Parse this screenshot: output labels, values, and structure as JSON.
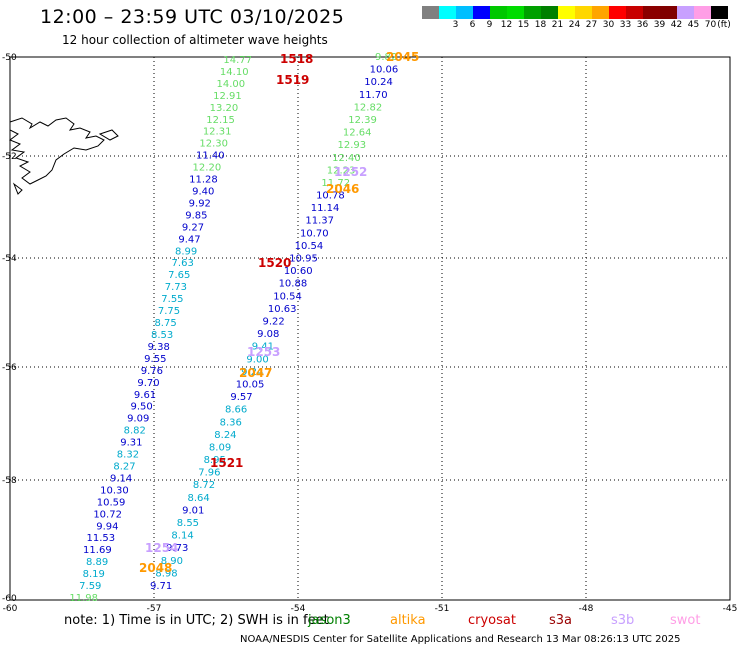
{
  "header": {
    "title": "12:00 – 23:59 UTC 03/10/2025",
    "subtitle": "12 hour collection of altimeter wave heights"
  },
  "color_scale": {
    "unit": "(ft)",
    "bins": [
      {
        "label": "",
        "color": "#808080"
      },
      {
        "label": "3",
        "color": "#00ffff"
      },
      {
        "label": "6",
        "color": "#00bfff"
      },
      {
        "label": "9",
        "color": "#0000ff"
      },
      {
        "label": "12",
        "color": "#00c800"
      },
      {
        "label": "15",
        "color": "#00dc00"
      },
      {
        "label": "18",
        "color": "#00a000"
      },
      {
        "label": "21",
        "color": "#008000"
      },
      {
        "label": "24",
        "color": "#ffff00"
      },
      {
        "label": "27",
        "color": "#ffd700"
      },
      {
        "label": "30",
        "color": "#ffa500"
      },
      {
        "label": "33",
        "color": "#ff0000"
      },
      {
        "label": "36",
        "color": "#c80000"
      },
      {
        "label": "39",
        "color": "#8b0000"
      },
      {
        "label": "42",
        "color": "#800000"
      },
      {
        "label": "45",
        "color": "#c8a0ff"
      },
      {
        "label": "70",
        "color": "#ff9ee6"
      },
      {
        "label": "",
        "color": "#000000"
      }
    ]
  },
  "map": {
    "lon_ticks": [
      "-60",
      "-57",
      "-54",
      "-51",
      "-48",
      "-45"
    ],
    "lat_ticks": [
      "-50",
      "-52",
      "-54",
      "-56",
      "-58",
      "-60"
    ],
    "grid": true
  },
  "pass_times": [
    {
      "text": "1518",
      "color": "#cc0000"
    },
    {
      "text": "1519",
      "color": "#cc0000"
    },
    {
      "text": "2045",
      "color": "#ff9900"
    },
    {
      "text": "1252",
      "color": "#c8a0ff"
    },
    {
      "text": "2046",
      "color": "#ff9900"
    },
    {
      "text": "1520",
      "color": "#cc0000"
    },
    {
      "text": "1253",
      "color": "#c8a0ff"
    },
    {
      "text": "2047",
      "color": "#ff9900"
    },
    {
      "text": "1521",
      "color": "#cc0000"
    },
    {
      "text": "1254",
      "color": "#c8a0ff"
    },
    {
      "text": "2048",
      "color": "#ff9900"
    }
  ],
  "track_left": [
    {
      "v": "14.77",
      "c": "#66dd66"
    },
    {
      "v": "14.10",
      "c": "#66dd66"
    },
    {
      "v": "14.00",
      "c": "#66dd66"
    },
    {
      "v": "12.91",
      "c": "#66dd66"
    },
    {
      "v": "13.20",
      "c": "#66dd66"
    },
    {
      "v": "12.15",
      "c": "#66dd66"
    },
    {
      "v": "12.31",
      "c": "#66dd66"
    },
    {
      "v": "12.30",
      "c": "#66dd66"
    },
    {
      "v": "11.40",
      "c": "#0000cc"
    },
    {
      "v": "12.20",
      "c": "#66dd66"
    },
    {
      "v": "11.28",
      "c": "#0000cc"
    },
    {
      "v": "9.40",
      "c": "#0000cc"
    },
    {
      "v": "9.92",
      "c": "#0000cc"
    },
    {
      "v": "9.85",
      "c": "#0000cc"
    },
    {
      "v": "9.27",
      "c": "#0000cc"
    },
    {
      "v": "9.47",
      "c": "#0000cc"
    },
    {
      "v": "8.99",
      "c": "#00aacc"
    },
    {
      "v": "7.63",
      "c": "#00aacc"
    },
    {
      "v": "7.65",
      "c": "#00aacc"
    },
    {
      "v": "7.73",
      "c": "#00aacc"
    },
    {
      "v": "7.55",
      "c": "#00aacc"
    },
    {
      "v": "7.75",
      "c": "#00aacc"
    },
    {
      "v": "8.75",
      "c": "#00aacc"
    },
    {
      "v": "8.53",
      "c": "#00aacc"
    },
    {
      "v": "9.38",
      "c": "#0000cc"
    },
    {
      "v": "9.55",
      "c": "#0000cc"
    },
    {
      "v": "9.76",
      "c": "#0000cc"
    },
    {
      "v": "9.70",
      "c": "#0000cc"
    },
    {
      "v": "9.61",
      "c": "#0000cc"
    },
    {
      "v": "9.50",
      "c": "#0000cc"
    },
    {
      "v": "9.09",
      "c": "#0000cc"
    },
    {
      "v": "8.82",
      "c": "#00aacc"
    },
    {
      "v": "9.31",
      "c": "#0000cc"
    },
    {
      "v": "8.32",
      "c": "#00aacc"
    },
    {
      "v": "8.27",
      "c": "#00aacc"
    },
    {
      "v": "9.14",
      "c": "#0000cc"
    },
    {
      "v": "10.30",
      "c": "#0000cc"
    },
    {
      "v": "10.59",
      "c": "#0000cc"
    },
    {
      "v": "10.72",
      "c": "#0000cc"
    },
    {
      "v": "9.94",
      "c": "#0000cc"
    },
    {
      "v": "11.53",
      "c": "#0000cc"
    },
    {
      "v": "11.69",
      "c": "#0000cc"
    },
    {
      "v": "8.89",
      "c": "#00aacc"
    },
    {
      "v": "8.19",
      "c": "#00aacc"
    },
    {
      "v": "7.59",
      "c": "#00aacc"
    },
    {
      "v": "11.98",
      "c": "#66dd66"
    }
  ],
  "track_right": [
    {
      "v": "9.82",
      "c": "#66dd66"
    },
    {
      "v": "10.06",
      "c": "#0000cc"
    },
    {
      "v": "10.24",
      "c": "#0000cc"
    },
    {
      "v": "11.70",
      "c": "#0000cc"
    },
    {
      "v": "12.82",
      "c": "#66dd66"
    },
    {
      "v": "12.39",
      "c": "#66dd66"
    },
    {
      "v": "12.64",
      "c": "#66dd66"
    },
    {
      "v": "12.93",
      "c": "#66dd66"
    },
    {
      "v": "12.40",
      "c": "#66dd66"
    },
    {
      "v": "12.23",
      "c": "#66dd66"
    },
    {
      "v": "11.72",
      "c": "#66dd66"
    },
    {
      "v": "10.78",
      "c": "#0000cc"
    },
    {
      "v": "11.14",
      "c": "#0000cc"
    },
    {
      "v": "11.37",
      "c": "#0000cc"
    },
    {
      "v": "10.70",
      "c": "#0000cc"
    },
    {
      "v": "10.54",
      "c": "#0000cc"
    },
    {
      "v": "10.95",
      "c": "#0000cc"
    },
    {
      "v": "10.60",
      "c": "#0000cc"
    },
    {
      "v": "10.88",
      "c": "#0000cc"
    },
    {
      "v": "10.54",
      "c": "#0000cc"
    },
    {
      "v": "10.63",
      "c": "#0000cc"
    },
    {
      "v": "9.22",
      "c": "#0000cc"
    },
    {
      "v": "9.08",
      "c": "#0000cc"
    },
    {
      "v": "9.41",
      "c": "#00aacc"
    },
    {
      "v": "9.00",
      "c": "#00aacc"
    },
    {
      "v": "9.24",
      "c": "#00aacc"
    },
    {
      "v": "10.05",
      "c": "#0000cc"
    },
    {
      "v": "9.57",
      "c": "#0000cc"
    },
    {
      "v": "8.66",
      "c": "#00aacc"
    },
    {
      "v": "8.36",
      "c": "#00aacc"
    },
    {
      "v": "8.24",
      "c": "#00aacc"
    },
    {
      "v": "8.09",
      "c": "#00aacc"
    },
    {
      "v": "8.95",
      "c": "#00aacc"
    },
    {
      "v": "7.96",
      "c": "#00aacc"
    },
    {
      "v": "8.72",
      "c": "#00aacc"
    },
    {
      "v": "8.64",
      "c": "#00aacc"
    },
    {
      "v": "9.01",
      "c": "#0000cc"
    },
    {
      "v": "8.55",
      "c": "#00aacc"
    },
    {
      "v": "8.14",
      "c": "#00aacc"
    },
    {
      "v": "9.73",
      "c": "#0000cc"
    },
    {
      "v": "8.90",
      "c": "#00aacc"
    },
    {
      "v": "8.98",
      "c": "#00aacc"
    },
    {
      "v": "9.71",
      "c": "#0000cc"
    }
  ],
  "note": {
    "text": "note:  1) Time is in UTC;  2) SWH is in feet",
    "missions": [
      {
        "label": "jason3",
        "color": "#008000"
      },
      {
        "label": "altika",
        "color": "#ff9900"
      },
      {
        "label": "cryosat",
        "color": "#cc0000"
      },
      {
        "label": "s3a",
        "color": "#990000"
      },
      {
        "label": "s3b",
        "color": "#c8a0ff"
      },
      {
        "label": "swot",
        "color": "#ff9ee6"
      }
    ]
  },
  "footer": "NOAA/NESDIS Center for Satellite Applications and Research    13 Mar 08:26:13 UTC 2025"
}
